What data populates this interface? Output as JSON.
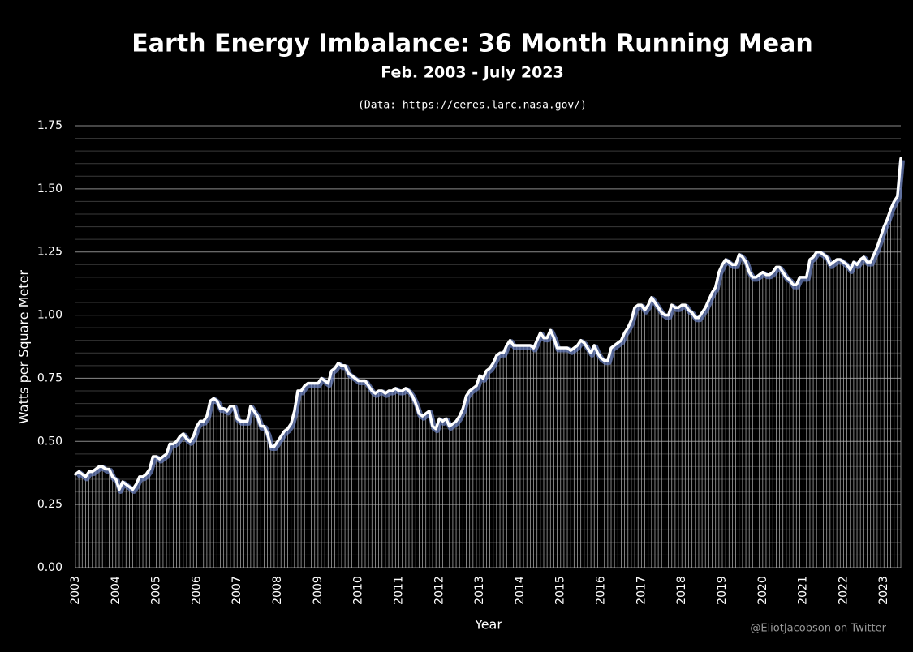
{
  "chart_data": {
    "type": "line",
    "title": "Earth Energy Imbalance: 36 Month Running Mean",
    "subtitle": "Feb. 2003 - July 2023",
    "source": "(Data: https://ceres.larc.nasa.gov/)",
    "ylabel": "Watts per Square Meter",
    "xlabel": "Year",
    "credit": "@EliotJacobson on Twitter",
    "categories": [
      "2003",
      null,
      null,
      null,
      null,
      null,
      null,
      null,
      null,
      null,
      null,
      null,
      "2004",
      null,
      null,
      null,
      null,
      null,
      null,
      null,
      null,
      null,
      null,
      null,
      "2005",
      null,
      null,
      null,
      null,
      null,
      null,
      null,
      null,
      null,
      null,
      null,
      "2006",
      null,
      null,
      null,
      null,
      null,
      null,
      null,
      null,
      null,
      null,
      null,
      "2007",
      null,
      null,
      null,
      null,
      null,
      null,
      null,
      null,
      null,
      null,
      null,
      "2008",
      null,
      null,
      null,
      null,
      null,
      null,
      null,
      null,
      null,
      null,
      null,
      "2009",
      null,
      null,
      null,
      null,
      null,
      null,
      null,
      null,
      null,
      null,
      null,
      "2010",
      null,
      null,
      null,
      null,
      null,
      null,
      null,
      null,
      null,
      null,
      null,
      "2011",
      null,
      null,
      null,
      null,
      null,
      null,
      null,
      null,
      null,
      null,
      null,
      "2012",
      null,
      null,
      null,
      null,
      null,
      null,
      null,
      null,
      null,
      null,
      null,
      "2013",
      null,
      null,
      null,
      null,
      null,
      null,
      null,
      null,
      null,
      null,
      null,
      "2014",
      null,
      null,
      null,
      null,
      null,
      null,
      null,
      null,
      null,
      null,
      null,
      "2015",
      null,
      null,
      null,
      null,
      null,
      null,
      null,
      null,
      null,
      null,
      null,
      "2016",
      null,
      null,
      null,
      null,
      null,
      null,
      null,
      null,
      null,
      null,
      null,
      "2017",
      null,
      null,
      null,
      null,
      null,
      null,
      null,
      null,
      null,
      null,
      null,
      "2018",
      null,
      null,
      null,
      null,
      null,
      null,
      null,
      null,
      null,
      null,
      null,
      "2019",
      null,
      null,
      null,
      null,
      null,
      null,
      null,
      null,
      null,
      null,
      null,
      "2020",
      null,
      null,
      null,
      null,
      null,
      null,
      null,
      null,
      null,
      null,
      null,
      "2021",
      null,
      null,
      null,
      null,
      null,
      null,
      null,
      null,
      null,
      null,
      null,
      "2022",
      null,
      null,
      null,
      null,
      null,
      null,
      null,
      null,
      null,
      null,
      null,
      "2023",
      null,
      null,
      null,
      null,
      null
    ],
    "series": [
      {
        "name": "36 Month Running Mean",
        "color": "#ffffff",
        "values": [
          0.37,
          0.38,
          0.37,
          0.36,
          0.38,
          0.38,
          0.39,
          0.4,
          0.4,
          0.39,
          0.39,
          0.36,
          0.35,
          0.31,
          0.34,
          0.33,
          0.32,
          0.31,
          0.33,
          0.36,
          0.36,
          0.37,
          0.39,
          0.44,
          0.44,
          0.43,
          0.44,
          0.45,
          0.49,
          0.49,
          0.5,
          0.52,
          0.53,
          0.51,
          0.5,
          0.52,
          0.56,
          0.58,
          0.58,
          0.6,
          0.66,
          0.67,
          0.66,
          0.63,
          0.63,
          0.62,
          0.64,
          0.64,
          0.59,
          0.58,
          0.58,
          0.58,
          0.64,
          0.62,
          0.6,
          0.56,
          0.56,
          0.53,
          0.48,
          0.48,
          0.5,
          0.52,
          0.54,
          0.55,
          0.57,
          0.62,
          0.7,
          0.7,
          0.72,
          0.73,
          0.73,
          0.73,
          0.73,
          0.75,
          0.74,
          0.73,
          0.78,
          0.79,
          0.81,
          0.8,
          0.8,
          0.77,
          0.76,
          0.75,
          0.74,
          0.74,
          0.74,
          0.72,
          0.7,
          0.69,
          0.7,
          0.7,
          0.69,
          0.7,
          0.7,
          0.71,
          0.7,
          0.7,
          0.71,
          0.7,
          0.68,
          0.65,
          0.61,
          0.6,
          0.61,
          0.62,
          0.56,
          0.55,
          0.59,
          0.58,
          0.59,
          0.56,
          0.57,
          0.58,
          0.6,
          0.63,
          0.68,
          0.7,
          0.71,
          0.72,
          0.76,
          0.75,
          0.78,
          0.79,
          0.81,
          0.84,
          0.85,
          0.85,
          0.88,
          0.9,
          0.88,
          0.88,
          0.88,
          0.88,
          0.88,
          0.88,
          0.87,
          0.9,
          0.93,
          0.91,
          0.91,
          0.94,
          0.91,
          0.87,
          0.87,
          0.87,
          0.87,
          0.86,
          0.87,
          0.88,
          0.9,
          0.89,
          0.87,
          0.85,
          0.88,
          0.85,
          0.83,
          0.82,
          0.82,
          0.87,
          0.88,
          0.89,
          0.9,
          0.93,
          0.95,
          0.98,
          1.03,
          1.04,
          1.04,
          1.02,
          1.04,
          1.07,
          1.05,
          1.03,
          1.01,
          1.0,
          1.0,
          1.04,
          1.03,
          1.03,
          1.04,
          1.04,
          1.02,
          1.01,
          0.99,
          0.99,
          1.01,
          1.03,
          1.06,
          1.09,
          1.11,
          1.17,
          1.2,
          1.22,
          1.21,
          1.2,
          1.2,
          1.24,
          1.23,
          1.21,
          1.17,
          1.15,
          1.15,
          1.16,
          1.17,
          1.16,
          1.16,
          1.17,
          1.19,
          1.19,
          1.17,
          1.15,
          1.14,
          1.12,
          1.12,
          1.15,
          1.15,
          1.15,
          1.22,
          1.23,
          1.25,
          1.25,
          1.24,
          1.23,
          1.2,
          1.21,
          1.22,
          1.22,
          1.21,
          1.2,
          1.18,
          1.21,
          1.2,
          1.22,
          1.23,
          1.21,
          1.21,
          1.24,
          1.27,
          1.31,
          1.35,
          1.38,
          1.42,
          1.45,
          1.47,
          1.62
        ]
      }
    ],
    "ylim": [
      0,
      1.75
    ],
    "yticks": [
      {
        "value": 0,
        "label": "0.00"
      },
      {
        "value": 0.25,
        "label": "0.25"
      },
      {
        "value": 0.5,
        "label": "0.50"
      },
      {
        "value": 0.75,
        "label": "0.75"
      },
      {
        "value": 1,
        "label": "1.00"
      },
      {
        "value": 1.25,
        "label": "1.25"
      },
      {
        "value": 1.5,
        "label": "1.50"
      },
      {
        "value": 1.75,
        "label": "1.75"
      }
    ],
    "minor_yticks": [
      0.05,
      0.1,
      0.15,
      0.2,
      0.3,
      0.35,
      0.4,
      0.45,
      0.55,
      0.6,
      0.65,
      0.7,
      0.8,
      0.85,
      0.9,
      0.95,
      1.05,
      1.1,
      1.15,
      1.2,
      1.3,
      1.35,
      1.4,
      1.45,
      1.55,
      1.6,
      1.65,
      1.7
    ],
    "grid": true
  }
}
